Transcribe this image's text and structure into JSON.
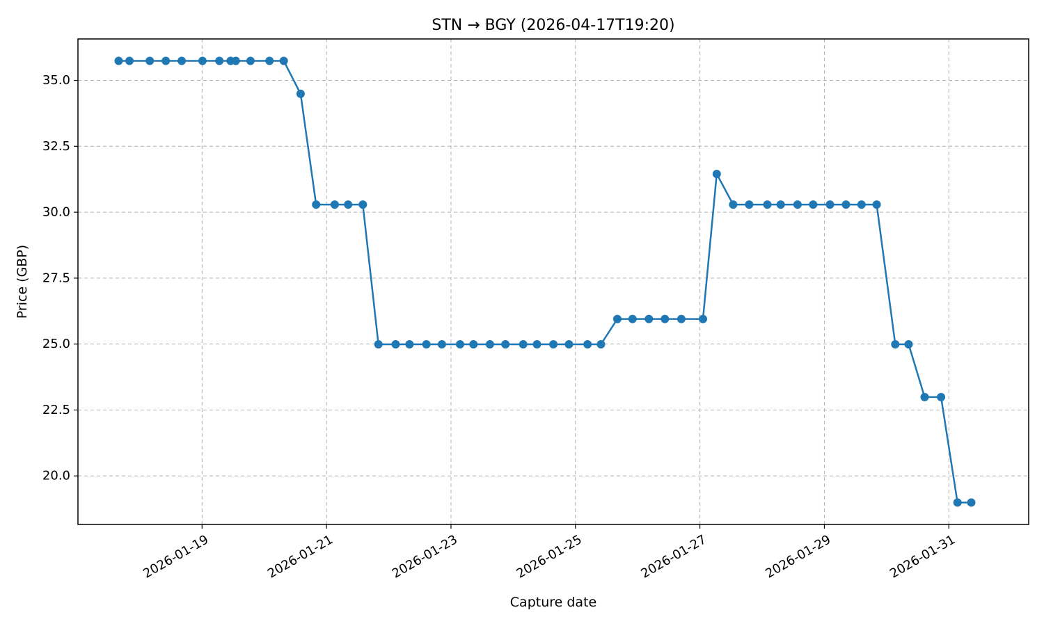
{
  "chart_data": {
    "type": "line",
    "title": "STN → BGY (2026-04-17T19:20)",
    "xlabel": "Capture date",
    "ylabel": "Price (GBP)",
    "grid": true,
    "x_tick_labels": [
      "2026-01-19",
      "2026-01-21",
      "2026-01-23",
      "2026-01-25",
      "2026-01-27",
      "2026-01-29",
      "2026-01-31"
    ],
    "y_tick_labels": [
      "20.0",
      "22.5",
      "25.0",
      "27.5",
      "30.0",
      "32.5",
      "35.0"
    ],
    "xlim": [
      "2026-01-17T00:08",
      "2026-02-01T06:48"
    ],
    "ylim": [
      18.16,
      36.57
    ],
    "series": [
      {
        "color": "#1f77b4",
        "marker": "circle",
        "x": [
          "2026-01-17T15:50",
          "2026-01-17T20:00",
          "2026-01-18T03:50",
          "2026-01-18T10:00",
          "2026-01-18T16:10",
          "2026-01-19T00:10",
          "2026-01-19T06:40",
          "2026-01-19T11:00",
          "2026-01-19T13:00",
          "2026-01-19T18:40",
          "2026-01-20T02:00",
          "2026-01-20T07:30",
          "2026-01-20T14:00",
          "2026-01-20T20:00",
          "2026-01-21T03:10",
          "2026-01-21T08:20",
          "2026-01-21T14:00",
          "2026-01-21T20:00",
          "2026-01-22T02:40",
          "2026-01-22T08:00",
          "2026-01-22T14:30",
          "2026-01-22T20:30",
          "2026-01-23T03:30",
          "2026-01-23T08:40",
          "2026-01-23T15:00",
          "2026-01-23T21:00",
          "2026-01-24T03:50",
          "2026-01-24T09:10",
          "2026-01-24T15:30",
          "2026-01-24T21:30",
          "2026-01-25T04:40",
          "2026-01-25T09:50",
          "2026-01-25T16:10",
          "2026-01-25T22:00",
          "2026-01-26T04:20",
          "2026-01-26T10:30",
          "2026-01-26T16:50",
          "2026-01-27T01:10",
          "2026-01-27T06:30",
          "2026-01-27T12:50",
          "2026-01-27T19:00",
          "2026-01-28T02:00",
          "2026-01-28T07:10",
          "2026-01-28T13:40",
          "2026-01-28T19:40",
          "2026-01-29T02:10",
          "2026-01-29T08:20",
          "2026-01-29T14:20",
          "2026-01-29T20:10",
          "2026-01-30T03:20",
          "2026-01-30T08:30",
          "2026-01-30T14:40",
          "2026-01-30T21:00",
          "2026-01-31T03:20",
          "2026-01-31T08:40"
        ],
        "y": [
          35.74,
          35.74,
          35.74,
          35.74,
          35.74,
          35.74,
          35.74,
          35.74,
          35.74,
          35.74,
          35.74,
          35.74,
          34.49,
          30.29,
          30.29,
          30.29,
          30.29,
          24.99,
          24.99,
          24.99,
          24.99,
          24.99,
          24.99,
          24.99,
          24.99,
          24.99,
          24.99,
          24.99,
          24.99,
          24.99,
          24.99,
          24.99,
          25.95,
          25.95,
          25.95,
          25.95,
          25.95,
          25.95,
          31.45,
          30.29,
          30.29,
          30.29,
          30.29,
          30.29,
          30.29,
          30.29,
          30.29,
          30.29,
          30.29,
          24.99,
          24.99,
          22.99,
          22.99,
          18.99,
          18.99
        ]
      }
    ]
  }
}
